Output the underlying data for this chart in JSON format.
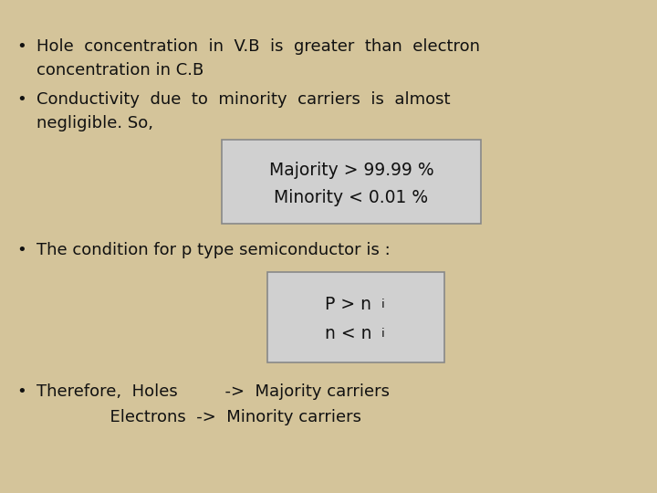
{
  "background_color": "#d4c49a",
  "text_color": "#111111",
  "font_family": "DejaVu Sans",
  "bullet1_line1": "Hole  concentration  in  V.B  is  greater  than  electron",
  "bullet1_line2": "concentration in C.B",
  "bullet2_line1": "Conductivity  due  to  minority  carriers  is  almost",
  "bullet2_line2": "negligible. So,",
  "box1_line1": "Majority > 99.99 %",
  "box1_line2": "Minority < 0.01 %",
  "bullet3_line1": "The condition for p type semiconductor is :",
  "bullet4_line1": "Therefore,  Holes         ->  Majority carriers",
  "bullet4_line2": "              Electrons  ->  Minority carriers",
  "font_size_main": 13.0,
  "font_size_box1": 13.5,
  "font_size_box2": 13.5,
  "box_bg": "#d0d0d0",
  "box_edge": "#888888"
}
